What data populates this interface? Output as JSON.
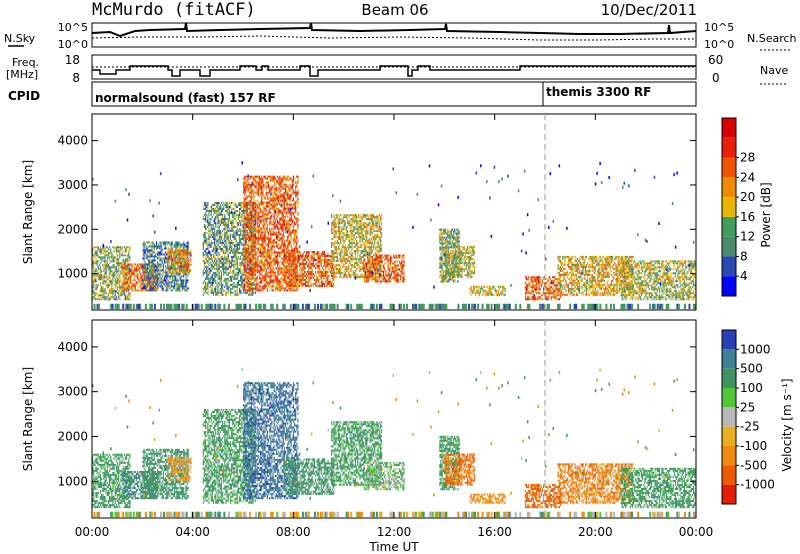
{
  "header": {
    "station": "McMurdo (fitACF)",
    "beam": "Beam 06",
    "date": "10/Dec/2011"
  },
  "strip_labels": {
    "nsky": "N.Sky",
    "freq_line1": "Freq.",
    "freq_line2": "[MHz]",
    "cpid": "CPID",
    "nsearch": "N.Search",
    "nave": "Nave"
  },
  "strip_ticks": {
    "noise_left": [
      "10^5",
      "10^0"
    ],
    "noise_right": [
      "10^5",
      "10^0"
    ],
    "freq_left": [
      "18",
      "8"
    ],
    "nave_right": [
      "60",
      "0"
    ]
  },
  "cpid_segments": [
    {
      "label": "normalsound (fast) 157 RF",
      "start_hour": 0
    },
    {
      "label": "themis 3300 RF",
      "start_hour": 18
    }
  ],
  "x_axis": {
    "label": "Time UT",
    "ticks": [
      "00:00",
      "04:00",
      "08:00",
      "12:00",
      "16:00",
      "20:00",
      "00:00"
    ],
    "range_hours": [
      0,
      24
    ]
  },
  "y_axis": {
    "label": "Slant Range [km]",
    "ticks": [
      "1000",
      "2000",
      "3000",
      "4000"
    ],
    "range_km": [
      180,
      4600
    ]
  },
  "power_colorbar": {
    "label": "Power [dB]",
    "ticks": [
      "4",
      "8",
      "12",
      "16",
      "20",
      "24",
      "28"
    ],
    "colors": [
      "#0000ff",
      "#2b47b0",
      "#4a8c6e",
      "#3f9e5a",
      "#e8b400",
      "#f08a00",
      "#ee5500",
      "#e8200a",
      "#d80000"
    ]
  },
  "velocity_colorbar": {
    "label": "Velocity [m s⁻¹]",
    "ticks": [
      "1000",
      "500",
      "100",
      "25",
      "-25",
      "-100",
      "-500",
      "-1000"
    ],
    "colors": [
      "#2a3eb8",
      "#3f7f96",
      "#3f9464",
      "#52c838",
      "#b8b8b8",
      "#e8b020",
      "#f08a10",
      "#ee5a00",
      "#e02000"
    ]
  },
  "chart_data": {
    "type": "heatmap",
    "panels": [
      "power",
      "velocity"
    ],
    "x_unit": "hours UT",
    "y_unit": "km",
    "echo_regions": [
      {
        "t0": 0.0,
        "t1": 1.5,
        "r0": 400,
        "r1": 1600,
        "p": 14,
        "v": 100
      },
      {
        "t0": 1.2,
        "t1": 2.6,
        "r0": 600,
        "r1": 1200,
        "p": 24,
        "v": 300
      },
      {
        "t0": 2.0,
        "t1": 3.8,
        "r0": 600,
        "r1": 1700,
        "p": 10,
        "v": 200
      },
      {
        "t0": 3.0,
        "t1": 3.9,
        "r0": 1000,
        "r1": 1500,
        "p": 22,
        "v": -60
      },
      {
        "t0": 4.4,
        "t1": 6.5,
        "r0": 500,
        "r1": 2600,
        "p": 12,
        "v": 100
      },
      {
        "t0": 6.0,
        "t1": 8.2,
        "r0": 600,
        "r1": 3200,
        "p": 26,
        "v": 600
      },
      {
        "t0": 7.6,
        "t1": 9.6,
        "r0": 700,
        "r1": 1500,
        "p": 26,
        "v": 150
      },
      {
        "t0": 9.5,
        "t1": 11.5,
        "r0": 900,
        "r1": 2300,
        "p": 18,
        "v": 100
      },
      {
        "t0": 10.8,
        "t1": 12.4,
        "r0": 800,
        "r1": 1400,
        "p": 26,
        "v": 30
      },
      {
        "t0": 13.8,
        "t1": 14.6,
        "r0": 800,
        "r1": 2000,
        "p": 14,
        "v": 100
      },
      {
        "t0": 14.0,
        "t1": 15.2,
        "r0": 900,
        "r1": 1600,
        "p": 16,
        "v": -300
      },
      {
        "t0": 15.0,
        "t1": 16.4,
        "r0": 500,
        "r1": 700,
        "p": 18,
        "v": -200
      },
      {
        "t0": 17.2,
        "t1": 18.6,
        "r0": 400,
        "r1": 900,
        "p": 26,
        "v": -400
      },
      {
        "t0": 18.5,
        "t1": 21.5,
        "r0": 500,
        "r1": 1400,
        "p": 20,
        "v": -250
      },
      {
        "t0": 21.0,
        "t1": 24.0,
        "r0": 400,
        "r1": 1300,
        "p": 16,
        "v": 100
      }
    ],
    "dashed_marker_hour": 18
  }
}
